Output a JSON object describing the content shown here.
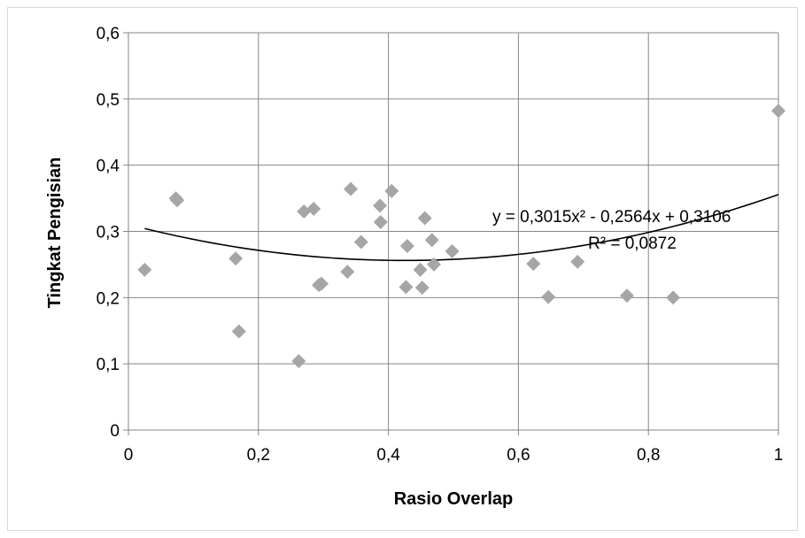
{
  "chart_data": {
    "type": "scatter",
    "title": "",
    "xlabel": "Rasio Overlap",
    "ylabel": "Tingkat Pengisian",
    "xlim": [
      0,
      1
    ],
    "ylim": [
      0,
      0.6
    ],
    "x_ticks": [
      "0",
      "0,2",
      "0,4",
      "0,6",
      "0,8",
      "1"
    ],
    "x_tick_values": [
      0,
      0.2,
      0.4,
      0.6,
      0.8,
      1
    ],
    "y_ticks": [
      "0",
      "0,1",
      "0,2",
      "0,3",
      "0,4",
      "0,5",
      "0,6"
    ],
    "y_tick_values": [
      0,
      0.1,
      0.2,
      0.3,
      0.4,
      0.5,
      0.6
    ],
    "grid": true,
    "legend": "none",
    "marker_color": "#a6a6a6",
    "series": [
      {
        "points": [
          [
            0.025,
            0.242
          ],
          [
            0.073,
            0.35
          ],
          [
            0.075,
            0.347
          ],
          [
            0.165,
            0.259
          ],
          [
            0.17,
            0.149
          ],
          [
            0.262,
            0.104
          ],
          [
            0.27,
            0.33
          ],
          [
            0.285,
            0.334
          ],
          [
            0.293,
            0.219
          ],
          [
            0.297,
            0.221
          ],
          [
            0.337,
            0.239
          ],
          [
            0.342,
            0.364
          ],
          [
            0.358,
            0.284
          ],
          [
            0.387,
            0.339
          ],
          [
            0.388,
            0.314
          ],
          [
            0.405,
            0.361
          ],
          [
            0.427,
            0.216
          ],
          [
            0.429,
            0.278
          ],
          [
            0.449,
            0.242
          ],
          [
            0.452,
            0.215
          ],
          [
            0.456,
            0.32
          ],
          [
            0.467,
            0.287
          ],
          [
            0.47,
            0.25
          ],
          [
            0.498,
            0.27
          ],
          [
            0.623,
            0.251
          ],
          [
            0.646,
            0.201
          ],
          [
            0.691,
            0.254
          ],
          [
            0.767,
            0.203
          ],
          [
            0.838,
            0.2
          ],
          [
            1.0,
            0.482
          ]
        ]
      }
    ],
    "trendline": {
      "type": "polynomial",
      "coefficients": [
        0.3015,
        -0.2564,
        0.3106
      ],
      "x_range": [
        0.025,
        1.0
      ],
      "color": "#000000",
      "equation_label": "y = 0,3015x² - 0,2564x + 0,3106",
      "r2_label": "R² = 0,0872"
    }
  }
}
